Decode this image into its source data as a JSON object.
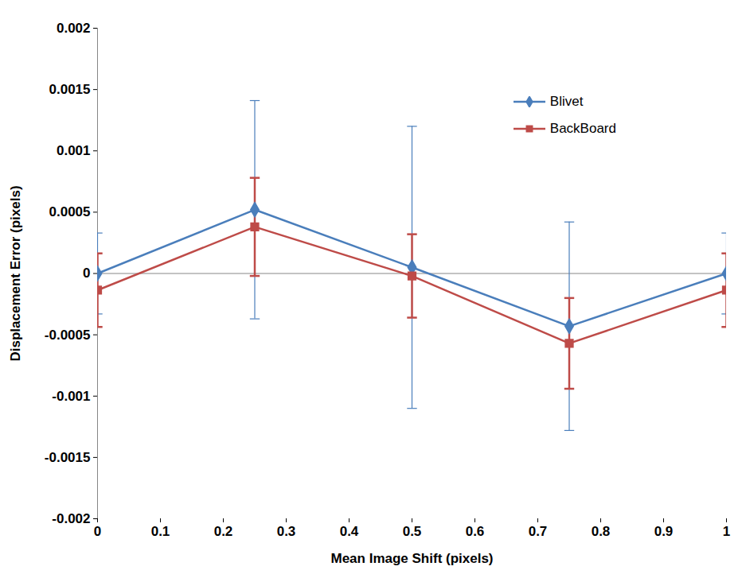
{
  "chart_data": {
    "type": "line",
    "x_label": "Mean Image Shift (pixels)",
    "y_label": "Displacement Error (pixels)",
    "x": [
      0,
      0.25,
      0.5,
      0.75,
      1
    ],
    "xlim": [
      0,
      1
    ],
    "xticks": [
      0,
      0.1,
      0.2,
      0.3,
      0.4,
      0.5,
      0.6,
      0.7,
      0.8,
      0.9,
      1
    ],
    "ylim": [
      -0.002,
      0.002
    ],
    "yticks": [
      -0.002,
      -0.0015,
      -0.001,
      -0.0005,
      0,
      0.0005,
      0.001,
      0.0015,
      0.002
    ],
    "grid": false,
    "legend": "top-right",
    "series": [
      {
        "name": "Blivet",
        "color": "#4a7ebb",
        "marker": "diamond",
        "values": [
          0,
          0.00052,
          5e-05,
          -0.00043,
          0
        ],
        "errors": [
          0.00033,
          0.00089,
          0.00115,
          0.00085,
          0.00033
        ]
      },
      {
        "name": "BackBoard",
        "color": "#be4b48",
        "marker": "square",
        "values": [
          -0.000136,
          0.00038,
          -2e-05,
          -0.00057,
          -0.000136
        ],
        "errors": [
          0.0003,
          0.0004,
          0.00034,
          0.00037,
          0.0003
        ]
      }
    ]
  }
}
